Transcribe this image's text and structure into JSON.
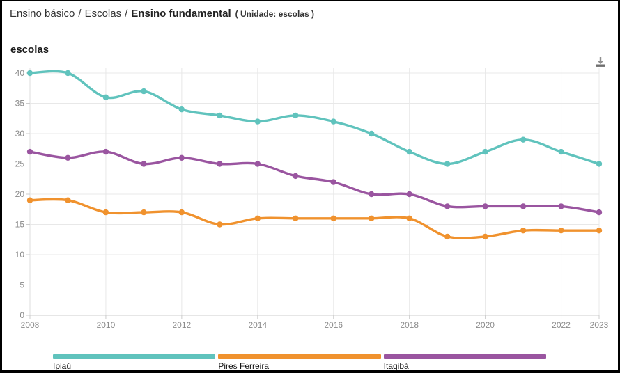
{
  "breadcrumb": {
    "items": [
      "Ensino básico",
      "Escolas",
      "Ensino fundamental"
    ],
    "separator": "/",
    "unit_note": "( Unidade: escolas )"
  },
  "chart": {
    "title": "escolas",
    "download_tooltip": "download"
  },
  "chart_data": {
    "type": "line",
    "title": "escolas",
    "unit": "escolas",
    "smooth": true,
    "grid": true,
    "legend_position": "bottom",
    "x": [
      2008,
      2009,
      2010,
      2011,
      2012,
      2013,
      2014,
      2015,
      2016,
      2017,
      2018,
      2019,
      2020,
      2021,
      2022,
      2023
    ],
    "x_tick_labels": [
      "2008",
      "2010",
      "2012",
      "2014",
      "2016",
      "2018",
      "2020",
      "2022",
      "2023"
    ],
    "x_gridline_years": [
      2008,
      2010,
      2012,
      2014,
      2016,
      2018,
      2020,
      2022,
      2023
    ],
    "y_ticks": [
      0,
      5,
      10,
      15,
      20,
      25,
      30,
      35,
      40
    ],
    "ylim": [
      0,
      40
    ],
    "series": [
      {
        "name": "Ipiaú",
        "color": "#60C3BD",
        "values": [
          40,
          40,
          36,
          37,
          34,
          33,
          32,
          33,
          32,
          30,
          27,
          25,
          27,
          29,
          27,
          25
        ]
      },
      {
        "name": "Pires Ferreira",
        "color": "#F0922E",
        "values": [
          19,
          19,
          17,
          17,
          17,
          15,
          16,
          16,
          16,
          16,
          16,
          13,
          13,
          14,
          14,
          14
        ]
      },
      {
        "name": "Itagibá",
        "color": "#9A55A0",
        "values": [
          27,
          26,
          27,
          25,
          26,
          25,
          25,
          23,
          22,
          20,
          20,
          18,
          18,
          18,
          18,
          17
        ]
      }
    ]
  },
  "colors": {
    "gridline": "#e8e8e8",
    "axis_line": "#cccccc",
    "tick_label": "#8a8a8a"
  }
}
